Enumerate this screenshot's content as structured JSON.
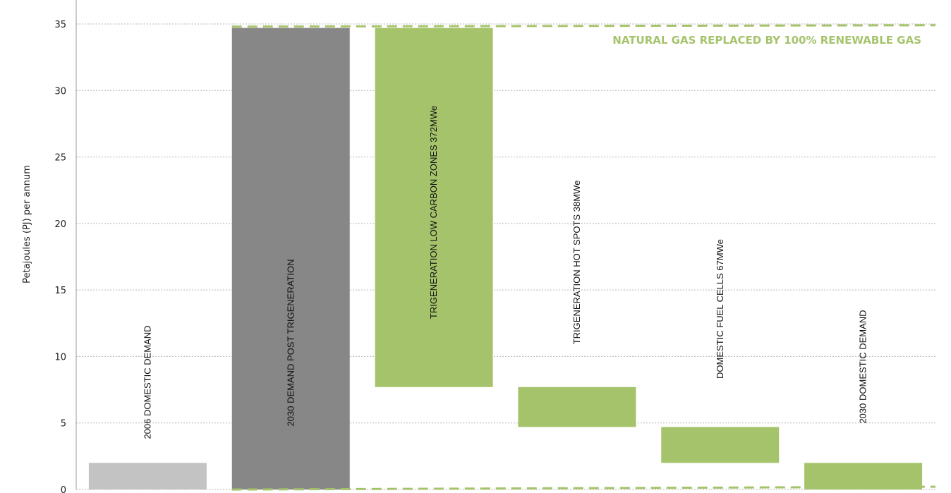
{
  "chart_data": {
    "type": "bar",
    "subtype": "waterfall",
    "title": "",
    "xlabel": "",
    "ylabel": "Petajoules (PJ) per annum",
    "ylim": [
      0,
      35
    ],
    "yticks": [
      0,
      5,
      10,
      15,
      20,
      25,
      30,
      35
    ],
    "grid": true,
    "bars": [
      {
        "label": "2006 DOMESTIC DEMAND",
        "bottom": 0,
        "top": 2.0,
        "color": "#c3c3c3"
      },
      {
        "label": "2030 DEMAND POST TRIGENERATION",
        "bottom": 0,
        "top": 34.7,
        "color": "#878787"
      },
      {
        "label": "TRIGENERATION  LOW CARBON ZONES  372MWe",
        "bottom": 7.7,
        "top": 34.7,
        "color": "#a5c36b"
      },
      {
        "label": "TRIGENERATION  HOT SPOTS  38MWe",
        "bottom": 4.7,
        "top": 7.7,
        "color": "#a5c36b"
      },
      {
        "label": "DOMESTIC FUEL  CELLS 67MWe",
        "bottom": 2.0,
        "top": 4.7,
        "color": "#a5c36b"
      },
      {
        "label": "2030 DOMESTIC DEMAND",
        "bottom": 0,
        "top": 2.0,
        "color": "#a5c36b"
      }
    ],
    "annotation": {
      "text": "NATURAL GAS REPLACED BY 100% RENEWABLE GAS",
      "color": "#a5c36b",
      "top_level": 34.8,
      "bottom_level": 0.1
    }
  }
}
